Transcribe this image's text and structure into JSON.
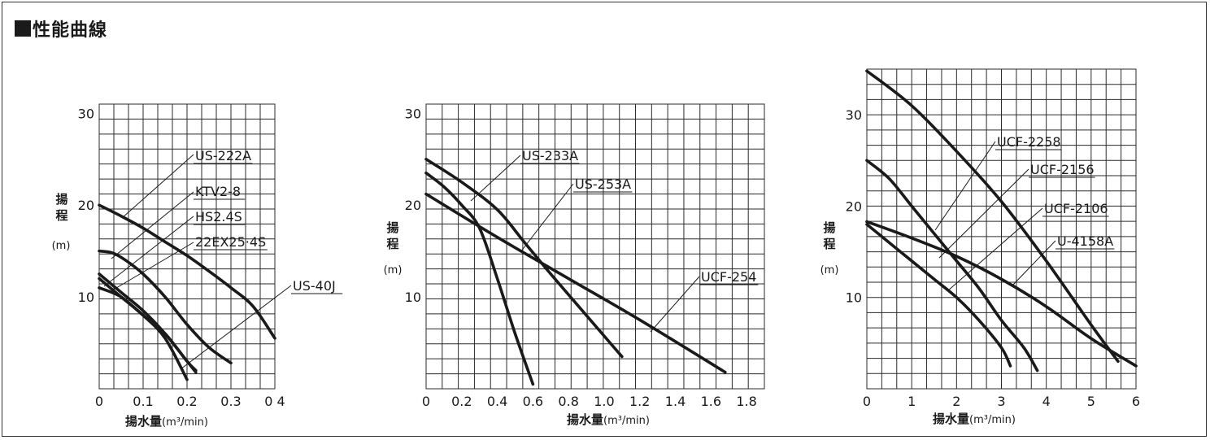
{
  "title": "性能曲線",
  "chart_data": [
    {
      "type": "line",
      "xlabel": "揚水量(m³/min)",
      "ylabel_main": "揚\n程",
      "ylabel_unit": "(m)",
      "xlim": [
        0,
        0.4
      ],
      "ylim": [
        0,
        31
      ],
      "xticks": [
        0,
        0.1,
        0.2,
        0.3,
        0.4
      ],
      "xtick_labels": [
        "0",
        "0.1",
        "0.2",
        "0.3",
        "0 4"
      ],
      "yticks": [
        10,
        20,
        30
      ],
      "ytick_labels": [
        "10",
        "20",
        "30"
      ],
      "grid": true,
      "series": [
        {
          "name": "US-222A",
          "x": [
            0,
            0.05,
            0.1,
            0.15,
            0.2,
            0.25,
            0.3,
            0.35,
            0.4
          ],
          "y": [
            20,
            18.8,
            17.5,
            16,
            14.5,
            12.8,
            11,
            9,
            5.5
          ]
        },
        {
          "name": "KTV2-8",
          "x": [
            0,
            0.03,
            0.06,
            0.1,
            0.15,
            0.2,
            0.25,
            0.3
          ],
          "y": [
            15,
            14.8,
            14,
            12.5,
            10,
            7,
            4.5,
            2.8
          ]
        },
        {
          "name": "HS2.4S",
          "x": [
            0,
            0.05,
            0.1,
            0.15,
            0.2,
            0.22
          ],
          "y": [
            12.5,
            10.5,
            8.5,
            6,
            3,
            1.8
          ]
        },
        {
          "name": "22EX25·4S",
          "x": [
            0,
            0.05,
            0.1,
            0.15,
            0.2
          ],
          "y": [
            12,
            10,
            8,
            5.5,
            1
          ]
        },
        {
          "name": "US-40J",
          "x": [
            0,
            0.05,
            0.1,
            0.15,
            0.2,
            0.22
          ],
          "y": [
            11,
            10,
            8,
            6,
            3,
            2
          ]
        }
      ]
    },
    {
      "type": "line",
      "xlabel": "揚水量(m³/min)",
      "ylabel_main": "揚\n程",
      "ylabel_unit": "(m)",
      "xlim": [
        0,
        1.9
      ],
      "ylim": [
        0,
        31
      ],
      "xticks": [
        0,
        0.2,
        0.4,
        0.6,
        0.8,
        1.0,
        1.2,
        1.4,
        1.6,
        1.8
      ],
      "xtick_labels": [
        "0",
        "0.2",
        "0.4",
        "0.6",
        "0.8",
        "1.0",
        "1.2",
        "1.4",
        "1.6",
        "1.8"
      ],
      "yticks": [
        10,
        20,
        30
      ],
      "ytick_labels": [
        "10",
        "20",
        "30"
      ],
      "grid": true,
      "series": [
        {
          "name": "US-233A",
          "x": [
            0,
            0.1,
            0.2,
            0.3,
            0.4,
            0.5,
            0.6
          ],
          "y": [
            23.5,
            22,
            20,
            17.5,
            12,
            6,
            0.5
          ]
        },
        {
          "name": "US-253A",
          "x": [
            0,
            0.2,
            0.4,
            0.55,
            0.7,
            0.9,
            1.1
          ],
          "y": [
            25,
            22.5,
            19.5,
            16,
            12.5,
            8,
            3.5
          ]
        },
        {
          "name": "UCF-254",
          "x": [
            0,
            0.4,
            0.8,
            1.2,
            1.68
          ],
          "y": [
            21.2,
            16.5,
            12,
            7.5,
            1.8
          ]
        }
      ]
    },
    {
      "type": "line",
      "xlabel": "揚水量(m³/min)",
      "ylabel_main": "揚\n程",
      "ylabel_unit": "(m)",
      "xlim": [
        0,
        6
      ],
      "ylim": [
        0,
        35
      ],
      "xticks": [
        0,
        1,
        2,
        3,
        4,
        5,
        6
      ],
      "xtick_labels": [
        "0",
        "1",
        "2",
        "3",
        "4",
        "5",
        "6"
      ],
      "yticks": [
        10,
        20,
        30
      ],
      "ytick_labels": [
        "10",
        "20",
        "30"
      ],
      "grid": true,
      "series": [
        {
          "name": "UCF-2258",
          "x": [
            0,
            1,
            2,
            3,
            4,
            5,
            5.6
          ],
          "y": [
            34.8,
            31,
            26,
            20.5,
            14,
            7,
            3
          ]
        },
        {
          "name": "UCF-2156",
          "x": [
            0,
            0.5,
            1,
            1.5,
            2,
            2.5,
            3,
            3.5,
            3.8
          ],
          "y": [
            25,
            23,
            20,
            17,
            14,
            11,
            7.5,
            4.5,
            2
          ]
        },
        {
          "name": "UCF-2106",
          "x": [
            0,
            0.5,
            1,
            1.5,
            2,
            2.5,
            3,
            3.2
          ],
          "y": [
            18,
            16,
            14,
            12,
            10,
            7.5,
            4.5,
            2.5
          ]
        },
        {
          "name": "U-4158A",
          "x": [
            0,
            1,
            2,
            3,
            4,
            5,
            6
          ],
          "y": [
            18.3,
            16.5,
            14.5,
            12,
            9,
            5.5,
            2.5
          ]
        }
      ]
    }
  ]
}
